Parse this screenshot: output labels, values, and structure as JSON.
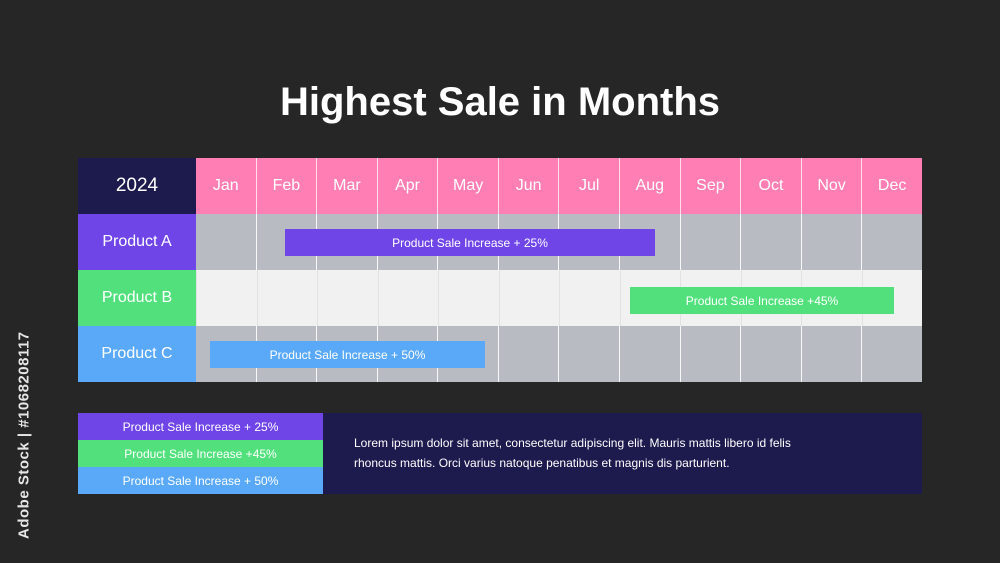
{
  "title": "Highest Sale in Months",
  "year": "2024",
  "months": [
    "Jan",
    "Feb",
    "Mar",
    "Apr",
    "May",
    "Jun",
    "Jul",
    "Aug",
    "Sep",
    "Oct",
    "Nov",
    "Dec"
  ],
  "rows": [
    {
      "label": "Product A",
      "bar_label": "Product Sale Increase + 25%",
      "color": "#6f45e8"
    },
    {
      "label": "Product B",
      "bar_label": "Product Sale Increase +45%",
      "color": "#52e07d"
    },
    {
      "label": "Product C",
      "bar_label": "Product Sale Increase + 50%",
      "color": "#5aa9f8"
    }
  ],
  "legend": {
    "items": [
      "Product Sale Increase + 25%",
      "Product Sale Increase +45%",
      "Product Sale Increase + 50%"
    ],
    "description": "Lorem ipsum dolor sit amet, consectetur adipiscing elit. Mauris mattis libero id felis rhoncus mattis. Orci varius natoque penatibus et magnis dis parturient."
  },
  "watermark": "Adobe Stock | #1068208117",
  "colors": {
    "background": "#262626",
    "header_pink": "#ff7eb3",
    "navy": "#1d1a4e",
    "purple": "#6f45e8",
    "green": "#52e07d",
    "blue": "#5aa9f8",
    "track_gray": "#b8bbc1",
    "track_light": "#f1f1f1"
  }
}
